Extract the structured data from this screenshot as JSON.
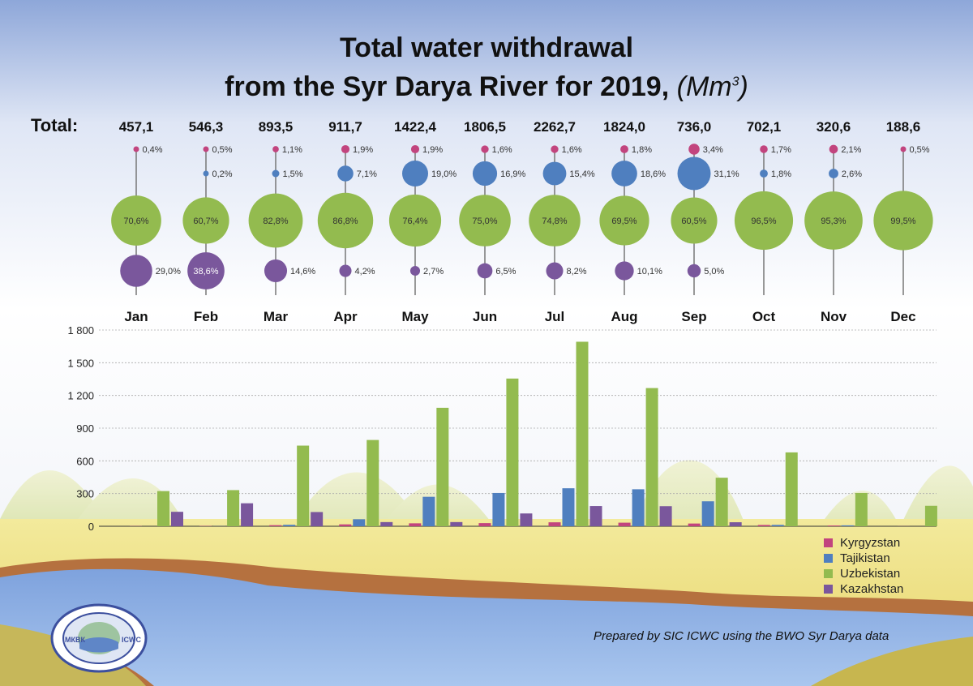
{
  "title_line1": "Total water withdrawal",
  "title_line2": "from the Syr Darya River for 2019,",
  "title_unit": "Mm",
  "title_unit_sup": "3",
  "total_label": "Total:",
  "credit": "Prepared by SIC ICWC using the BWO Syr Darya data",
  "colors": {
    "Kyrgyzstan": "#c2447e",
    "Tajikistan": "#4f7fbf",
    "Uzbekistan": "#93bb4f",
    "Kazakhstan": "#7a579c"
  },
  "months": [
    {
      "name": "Jan",
      "total": "457,1",
      "shares": {
        "Kyrgyzstan": "0,4%",
        "Tajikistan": null,
        "Uzbekistan": "70,6%",
        "Kazakhstan": "29,0%"
      }
    },
    {
      "name": "Feb",
      "total": "546,3",
      "shares": {
        "Kyrgyzstan": "0,5%",
        "Tajikistan": "0,2%",
        "Uzbekistan": "60,7%",
        "Kazakhstan": "38,6%"
      }
    },
    {
      "name": "Mar",
      "total": "893,5",
      "shares": {
        "Kyrgyzstan": "1,1%",
        "Tajikistan": "1,5%",
        "Uzbekistan": "82,8%",
        "Kazakhstan": "14,6%"
      }
    },
    {
      "name": "Apr",
      "total": "911,7",
      "shares": {
        "Kyrgyzstan": "1,9%",
        "Tajikistan": "7,1%",
        "Uzbekistan": "86,8%",
        "Kazakhstan": "4,2%"
      }
    },
    {
      "name": "May",
      "total": "1422,4",
      "shares": {
        "Kyrgyzstan": "1,9%",
        "Tajikistan": "19,0%",
        "Uzbekistan": "76,4%",
        "Kazakhstan": "2,7%"
      }
    },
    {
      "name": "Jun",
      "total": "1806,5",
      "shares": {
        "Kyrgyzstan": "1,6%",
        "Tajikistan": "16,9%",
        "Uzbekistan": "75,0%",
        "Kazakhstan": "6,5%"
      }
    },
    {
      "name": "Jul",
      "total": "2262,7",
      "shares": {
        "Kyrgyzstan": "1,6%",
        "Tajikistan": "15,4%",
        "Uzbekistan": "74,8%",
        "Kazakhstan": "8,2%"
      }
    },
    {
      "name": "Aug",
      "total": "1824,0",
      "shares": {
        "Kyrgyzstan": "1,8%",
        "Tajikistan": "18,6%",
        "Uzbekistan": "69,5%",
        "Kazakhstan": "10,1%"
      }
    },
    {
      "name": "Sep",
      "total": "736,0",
      "shares": {
        "Kyrgyzstan": "3,4%",
        "Tajikistan": "31,1%",
        "Uzbekistan": "60,5%",
        "Kazakhstan": "5,0%"
      }
    },
    {
      "name": "Oct",
      "total": "702,1",
      "shares": {
        "Kyrgyzstan": "1,7%",
        "Tajikistan": "1,8%",
        "Uzbekistan": "96,5%",
        "Kazakhstan": null
      }
    },
    {
      "name": "Nov",
      "total": "320,6",
      "shares": {
        "Kyrgyzstan": "2,1%",
        "Tajikistan": "2,6%",
        "Uzbekistan": "95,3%",
        "Kazakhstan": null
      }
    },
    {
      "name": "Dec",
      "total": "188,6",
      "shares": {
        "Kyrgyzstan": "0,5%",
        "Tajikistan": null,
        "Uzbekistan": "99,5%",
        "Kazakhstan": null
      }
    }
  ],
  "chart_data": {
    "type": "bar",
    "categories": [
      "Jan",
      "Feb",
      "Mar",
      "Apr",
      "May",
      "Jun",
      "Jul",
      "Aug",
      "Sep",
      "Oct",
      "Nov",
      "Dec"
    ],
    "ylim": [
      0,
      1800
    ],
    "yticks": [
      0,
      300,
      600,
      900,
      1200,
      1500,
      1800
    ],
    "ytick_labels": [
      "0",
      "300",
      "600",
      "900",
      "1 200",
      "1 500",
      "1 800"
    ],
    "grid": true,
    "legend_position": "bottom-right",
    "series": [
      {
        "name": "Kyrgyzstan",
        "values": [
          1.8,
          2.7,
          9.8,
          17.3,
          27.0,
          28.9,
          36.2,
          32.8,
          25.0,
          11.9,
          6.7,
          0.9
        ]
      },
      {
        "name": "Tajikistan",
        "values": [
          0,
          1.1,
          13.4,
          64.7,
          270.3,
          305.3,
          348.5,
          339.3,
          228.9,
          12.6,
          8.3,
          0
        ]
      },
      {
        "name": "Uzbekistan",
        "values": [
          322.7,
          331.6,
          739.8,
          791.4,
          1086.7,
          1354.9,
          1692.5,
          1267.7,
          445.3,
          677.5,
          305.5,
          187.7
        ]
      },
      {
        "name": "Kazakhstan",
        "values": [
          132.6,
          210.9,
          130.5,
          38.3,
          38.4,
          117.4,
          185.5,
          184.2,
          36.8,
          0,
          0,
          0
        ]
      }
    ]
  }
}
